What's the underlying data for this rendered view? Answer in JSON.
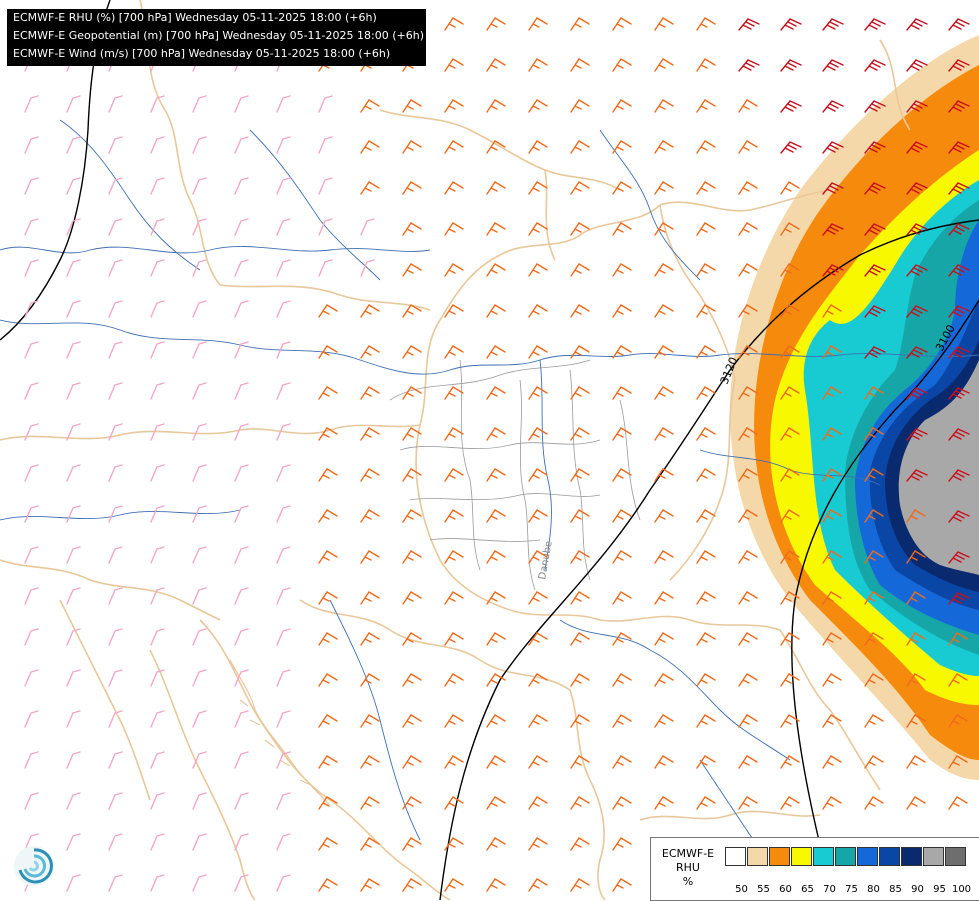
{
  "header": {
    "lines": [
      "ECMWF-E RHU (%) [700 hPa] Wednesday 05-11-2025 18:00 (+6h)",
      "ECMWF-E Geopotential (m) [700 hPa] Wednesday 05-11-2025 18:00 (+6h)",
      "ECMWF-E Wind (m/s) [700 hPa] Wednesday 05-11-2025 18:00 (+6h)"
    ]
  },
  "map": {
    "contour_labels": [
      "3120",
      "3100"
    ],
    "river_label": "Danube",
    "colors": {
      "border": "#e8c79a",
      "river": "#3d6fb3",
      "inner_border": "#9a9a9a",
      "contour": "#000000",
      "barb_weak": "#f5a6c6",
      "barb_mid": "#f06a1c",
      "barb_strong": "#c8101e"
    }
  },
  "legend": {
    "title_lines": [
      "ECMWF-E",
      "RHU",
      "%"
    ],
    "swatches": [
      {
        "color": "#ffffff"
      },
      {
        "color": "#f5d8a9"
      },
      {
        "color": "#f68a0c"
      },
      {
        "color": "#f8f800"
      },
      {
        "color": "#18cbd3"
      },
      {
        "color": "#17a6a8"
      },
      {
        "color": "#1568d8"
      },
      {
        "color": "#0a46a5"
      },
      {
        "color": "#0a2a70"
      },
      {
        "color": "#a8a8a8"
      },
      {
        "color": "#6e6e6e"
      }
    ],
    "labels": [
      "50",
      "55",
      "60",
      "65",
      "70",
      "75",
      "80",
      "85",
      "90",
      "95",
      "100"
    ]
  }
}
